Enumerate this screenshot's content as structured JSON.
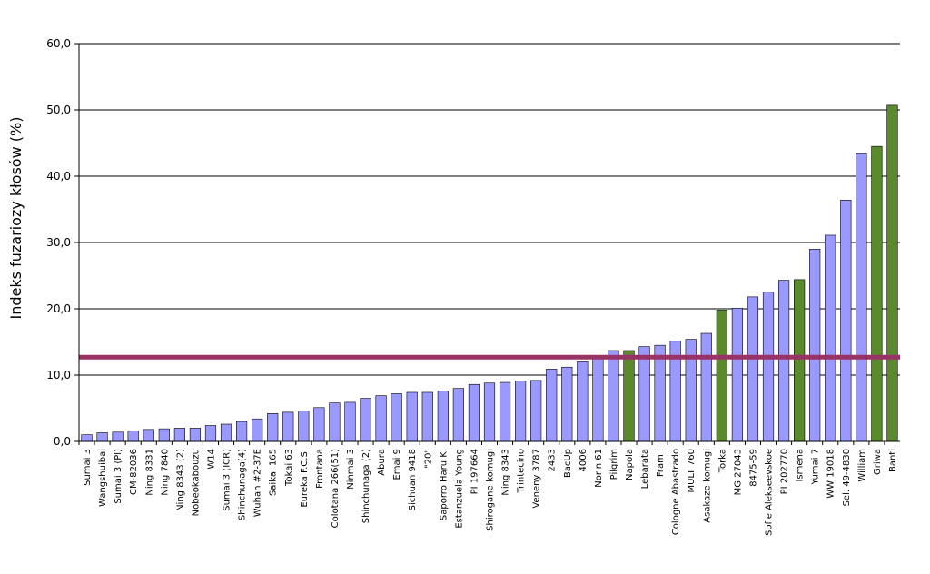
{
  "chart_data": {
    "type": "bar",
    "ylabel": "Indeks fuzariozy kłosów (%)",
    "xlabel": "",
    "ylim": [
      0,
      60
    ],
    "yticks": [
      "0,0",
      "10,0",
      "20,0",
      "30,0",
      "40,0",
      "50,0",
      "60,0"
    ],
    "grid": "horizontal",
    "reference_line": 12.7,
    "categories": [
      "Sumai 3",
      "Wangshuibai",
      "Sumai 3 (Pl)",
      "CM-82036",
      "Ning 8331",
      "Ning 7840",
      "Ning 8343 (2)",
      "Nobeokabouzu",
      "W14",
      "Sumai 3 (ICR)",
      "Shinchunaga(4)",
      "Wuhan #2-37E",
      "Saikai 165",
      "Tokai 63",
      "Eureka F.C.S.",
      "Frontana",
      "Colotana 266(51)",
      "Ninmai 3",
      "Shinchunaga (2)",
      "Abura",
      "Emai 9",
      "Sichuan 9418",
      "\"20\"",
      "Saporro Haru K.",
      "Estanzuela Young",
      "PI 197664",
      "Shirogane-komugi",
      "Ning 8343",
      "Trintecino",
      "Veneny 3787",
      "2433",
      "BacUp",
      "4006",
      "Norin 61",
      "Pilgrim",
      "Napola",
      "Lebarata",
      "Fram I",
      "Cologne Abastrado",
      "MULT 760",
      "Asakaze-komugi",
      "Torka",
      "MG 27043",
      "8475-59",
      "Sofie Alekseevskoe",
      "PI 202770",
      "Ismena",
      "Yumai 7",
      "WW 19018",
      "Sel. 49-4830",
      "William",
      "Griwa",
      "Banti"
    ],
    "values": [
      1.0,
      1.3,
      1.4,
      1.6,
      1.8,
      1.9,
      2.0,
      2.0,
      2.4,
      2.6,
      3.0,
      3.4,
      4.2,
      4.4,
      4.6,
      5.1,
      5.8,
      5.9,
      6.5,
      6.9,
      7.2,
      7.4,
      7.4,
      7.6,
      8.0,
      8.6,
      8.8,
      8.9,
      9.1,
      9.2,
      10.9,
      11.2,
      12.0,
      12.7,
      13.7,
      13.7,
      14.3,
      14.5,
      15.1,
      15.4,
      16.3,
      19.8,
      20.1,
      21.8,
      22.5,
      24.3,
      24.4,
      29.0,
      31.1,
      36.4,
      43.4,
      44.5,
      50.7
    ],
    "highlighted": [
      "Napola",
      "Torka",
      "Ismena",
      "Griwa",
      "Banti"
    ],
    "colors": {
      "bar": "#9999ff",
      "highlight_bar": "#5a8a2c",
      "reference_line": "#993366",
      "grid": "#000000"
    }
  }
}
